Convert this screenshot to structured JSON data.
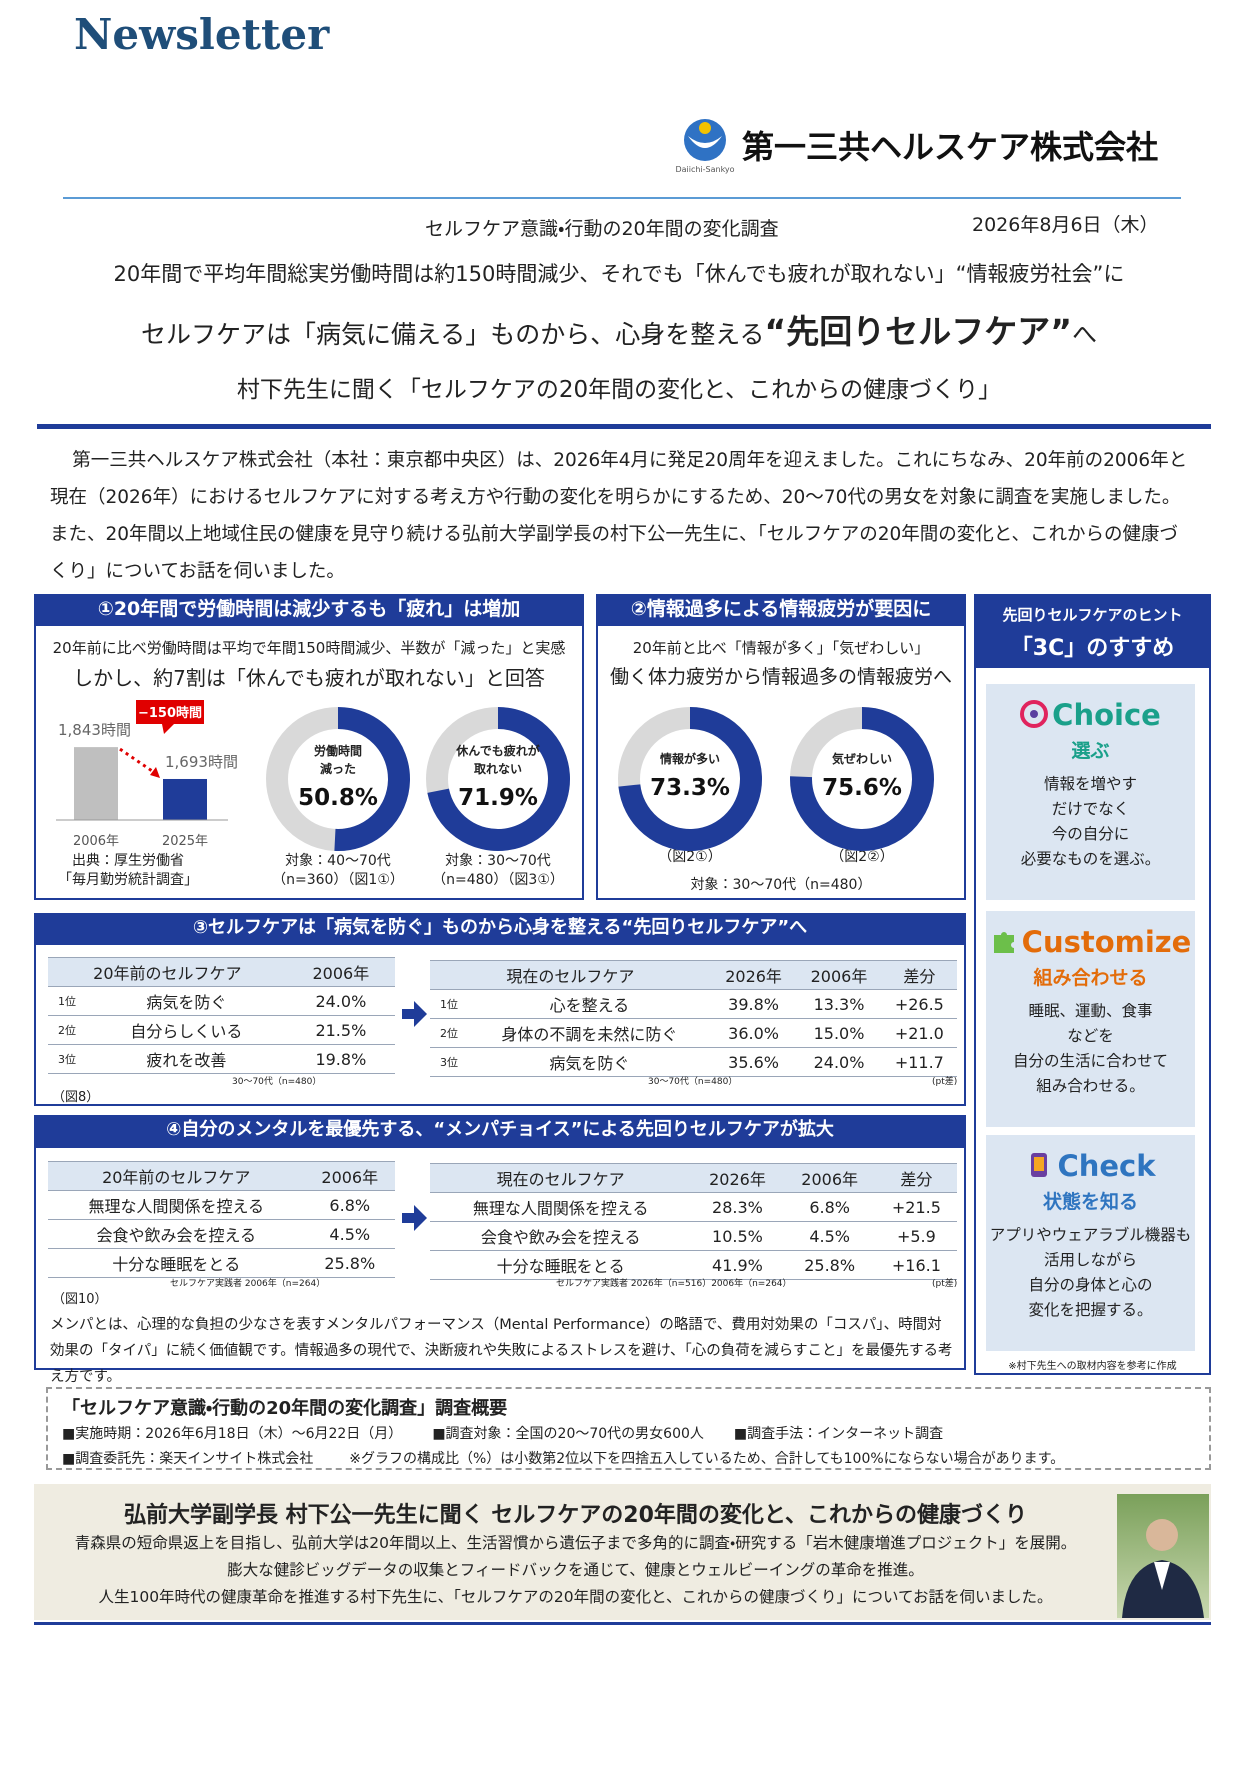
{
  "header": {
    "title": "Newsletter",
    "company": "第一三共ヘルスケア株式会社",
    "logo_text": "Daiichi-Sankyo"
  },
  "report": {
    "subtitle": "セルフケア意識・行動の20年間の変化調査",
    "date": "2026年8月6日（木）",
    "headline_1": "20年間で平均年間総実労働時間は約150時間減少、それでも「休んでも疲れが取れない」“情報疲労社会”に",
    "headline_2": "セルフケアは「病気に備える」ものから、心身を整える",
    "headline_2_emphasis": "“先回りセルフケア”",
    "headline_2_end": "へ",
    "headline_3": "村下先生に聞く「セルフケアの20年間の変化と、これからの健康づくり」",
    "intro": "第一三共ヘルスケア株式会社（本社：東京都中央区）は、2026年4月に発足20周年を迎えました。これにちなみ、20年前の2006年と現在（2026年）におけるセルフケアに対する考え方や行動の変化を明らかにするため、20～70代の男女を対象に調査を実施しました。また、20年間以上地域住民の健康を見守り続ける弘前大学副学長の村下公一先生に、「セルフケアの20年間の変化と、これからの健康づくり」についてお話を伺いました。"
  },
  "panel_1": {
    "title": "①20年間で労働時間は減少するも「疲れ」は増加",
    "lead_1": "20年前に比べ労働時間は平均で年間150時間減少、半数が「減った」と実感",
    "lead_2": "しかし、約7割は「休んでも疲れが取れない」と回答",
    "chart": {
      "type": "bar",
      "categories": [
        "2006年",
        "2025年"
      ],
      "values": [
        1843,
        1693
      ],
      "value_labels": [
        "1,843時間",
        "1,693時間"
      ],
      "colors": [
        "#bfbfbf",
        "#1f3c99"
      ],
      "ylim": [
        1500,
        1900
      ],
      "annotation": "−150時間"
    },
    "source": [
      "出典：厚生労働省",
      "「毎月勤労統計調査」"
    ],
    "donuts": [
      {
        "type": "donut",
        "label": [
          "労働時間",
          "減った"
        ],
        "value": 50.8,
        "value_label": "50.8%",
        "ylim": [
          0,
          100
        ],
        "caption": [
          "対象：40～70代",
          "（n=360）（図1①）"
        ]
      },
      {
        "type": "donut",
        "label": [
          "休んでも疲れが",
          "取れない"
        ],
        "value": 71.9,
        "value_label": "71.9%",
        "ylim": [
          0,
          100
        ],
        "caption": [
          "対象：30～70代",
          "（n=480）（図3①）"
        ]
      }
    ]
  },
  "panel_2": {
    "title": "②情報過多による情報疲労が要因に",
    "lead_1": "20年前と比べ「情報が多く」「気ぜわしい」",
    "lead_2": "働く体力疲労から情報過多の情報疲労へ",
    "donuts": [
      {
        "type": "donut",
        "label": [
          "情報が多い"
        ],
        "value": 73.3,
        "value_label": "73.3%",
        "ylim": [
          0,
          100
        ],
        "caption": [
          "（図2①）"
        ]
      },
      {
        "type": "donut",
        "label": [
          "気ぜわしい"
        ],
        "value": 75.6,
        "value_label": "75.6%",
        "ylim": [
          0,
          100
        ],
        "caption": [
          "（図2②）"
        ]
      }
    ],
    "sample": "対象：30～70代（n=480）"
  },
  "panel_3": {
    "title": "③セルフケアは「病気を防ぐ」ものから心身を整える“先回りセルフケア”へ",
    "table_past": {
      "header": [
        "20年前のセルフケア",
        "2006年"
      ],
      "rows": [
        [
          "1位",
          "病気を防ぐ",
          "24.0%"
        ],
        [
          "2位",
          "自分らしくいる",
          "21.5%"
        ],
        [
          "3位",
          "疲れを改善",
          "19.8%"
        ]
      ]
    },
    "table_now": {
      "header": [
        "現在のセルフケア",
        "2026年",
        "2006年",
        "差分"
      ],
      "rows": [
        [
          "1位",
          "心を整える",
          "39.8%",
          "13.3%",
          "+26.5"
        ],
        [
          "2位",
          "身体の不調を未然に防ぐ",
          "36.0%",
          "15.0%",
          "+21.0"
        ],
        [
          "3位",
          "病気を防ぐ",
          "35.6%",
          "24.0%",
          "+11.7"
        ]
      ]
    },
    "notes": {
      "figure": "（図8）",
      "left_sample": "30～70代（n=480）",
      "right_sample": "30～70代（n=480）",
      "unit": "(pt差)"
    }
  },
  "panel_4": {
    "title": "④自分のメンタルを最優先する、“メンパチョイス”による先回りセルフケアが拡大",
    "table_past": {
      "header": [
        "20年前のセルフケア",
        "2006年"
      ],
      "rows": [
        [
          "無理な人間関係を控える",
          "6.8%"
        ],
        [
          "会食や飲み会を控える",
          "4.5%"
        ],
        [
          "十分な睡眠をとる",
          "25.8%"
        ]
      ]
    },
    "table_now": {
      "header": [
        "現在のセルフケア",
        "2026年",
        "2006年",
        "差分"
      ],
      "rows": [
        [
          "無理な人間関係を控える",
          "28.3%",
          "6.8%",
          "+21.5"
        ],
        [
          "会食や飲み会を控える",
          "10.5%",
          "4.5%",
          "+5.9"
        ],
        [
          "十分な睡眠をとる",
          "41.9%",
          "25.8%",
          "+16.1"
        ]
      ]
    },
    "notes": {
      "figure": "（図10）",
      "left_sample": "セルフケア実践者 2006年（n=264）",
      "right_sample": "セルフケア実践者 2026年（n=516）2006年（n=264）",
      "unit": "(pt差)"
    },
    "description": "メンパとは、心理的な負担の少なさを表すメンタルパフォーマンス（Mental Performance）の略語で、費用対効果の「コスパ」、時間対効果の「タイパ」に続く価値観です。情報過多の現代で、決断疲れや失敗によるストレスを避け、「心の負荷を減らすこと」を最優先する考え方です。"
  },
  "hints": {
    "title": "先回りセルフケアのヒント",
    "subtitle": "「3C」のすすめ",
    "cards": [
      {
        "en": "Choice",
        "ja": "選ぶ",
        "lines": [
          "情報を増やす",
          "だけでなく",
          "今の自分に",
          "必要なものを選ぶ。"
        ]
      },
      {
        "en": "Customize",
        "ja": "組み合わせる",
        "lines": [
          "睡眠、運動、食事",
          "などを",
          "自分の生活に合わせて",
          "組み合わせる。"
        ]
      },
      {
        "en": "Check",
        "ja": "状態を知る",
        "lines": [
          "アプリやウェアラブル機器も",
          "活用しながら",
          "自分の身体と心の",
          "変化を把握する。"
        ]
      }
    ],
    "footnote": "※村下先生への取材内容を参考に作成"
  },
  "survey": {
    "title": "「セルフケア意識・行動の20年間の変化調査」調査概要",
    "line_1": [
      "■実施時期：2026年6月18日（木）～6月22日（月）",
      "■調査対象：全国の20～70代の男女600人",
      "■調査手法：インターネット調査"
    ],
    "line_2": [
      "■調査委託先：楽天インサイト株式会社",
      "※グラフの構成比（%）は小数第2位以下を四捨五入しているため、合計しても100%にならない場合があります。"
    ]
  },
  "interview": {
    "title": "弘前大学副学長 村下公一先生に聞く セルフケアの20年間の変化と、これからの健康づくり",
    "lines": [
      "青森県の短命県返上を目指し、弘前大学は20年間以上、生活習慣から遺伝子まで多角的に調査・研究する「岩木健康増進プロジェクト」を展開。",
      "膨大な健診ビッグデータの収集とフィードバックを通じて、健康とウェルビーイングの革命を推進。",
      "人生100年時代の健康革命を推進する村下先生に、「セルフケアの20年間の変化と、これからの健康づくり」についてお話を伺いました。"
    ]
  }
}
